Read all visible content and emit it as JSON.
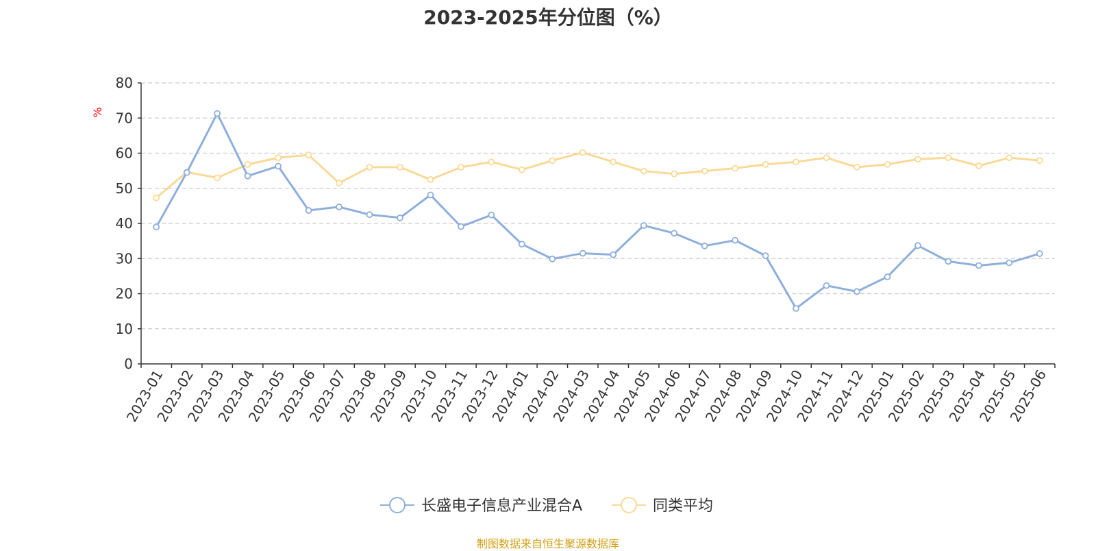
{
  "chart_data": {
    "type": "line",
    "title": "2023-2025年分位图（%）",
    "ylabel": "%",
    "xlabel": "",
    "ylim": [
      0,
      80
    ],
    "yticks": [
      0,
      10,
      20,
      30,
      40,
      50,
      60,
      70,
      80
    ],
    "grid": true,
    "legend_position": "bottom",
    "categories": [
      "2023-01",
      "2023-02",
      "2023-03",
      "2023-04",
      "2023-05",
      "2023-06",
      "2023-07",
      "2023-08",
      "2023-09",
      "2023-10",
      "2023-11",
      "2023-12",
      "2024-01",
      "2024-02",
      "2024-03",
      "2024-04",
      "2024-05",
      "2024-06",
      "2024-07",
      "2024-08",
      "2024-09",
      "2024-10",
      "2024-11",
      "2024-12",
      "2025-01",
      "2025-02",
      "2025-03",
      "2025-04",
      "2025-05",
      "2025-06"
    ],
    "series": [
      {
        "name": "长盛电子信息产业混合A",
        "color": "#8eaedb",
        "values": [
          39.0,
          54.5,
          71.3,
          53.5,
          56.3,
          43.7,
          44.7,
          42.5,
          41.6,
          48.1,
          39.1,
          42.4,
          34.1,
          29.9,
          31.5,
          31.1,
          39.4,
          37.2,
          33.6,
          35.2,
          30.8,
          15.8,
          22.3,
          20.6,
          24.8,
          33.7,
          29.2,
          28.0,
          28.8,
          31.4
        ]
      },
      {
        "name": "同类平均",
        "color": "#fad996",
        "values": [
          47.3,
          54.6,
          53.0,
          56.8,
          58.7,
          59.5,
          51.5,
          56.0,
          56.0,
          52.5,
          56.0,
          57.5,
          55.3,
          57.9,
          60.2,
          57.5,
          54.9,
          54.1,
          54.9,
          55.7,
          56.8,
          57.5,
          58.7,
          56.0,
          56.8,
          58.3,
          58.7,
          56.4,
          58.7,
          57.9
        ]
      }
    ]
  },
  "footer": {
    "source": "制图数据来自恒生聚源数据库"
  },
  "colors": {
    "axis": "#333333",
    "grid": "#cccccc",
    "ylabel": "#ff0000",
    "footer": "#d4a017"
  }
}
